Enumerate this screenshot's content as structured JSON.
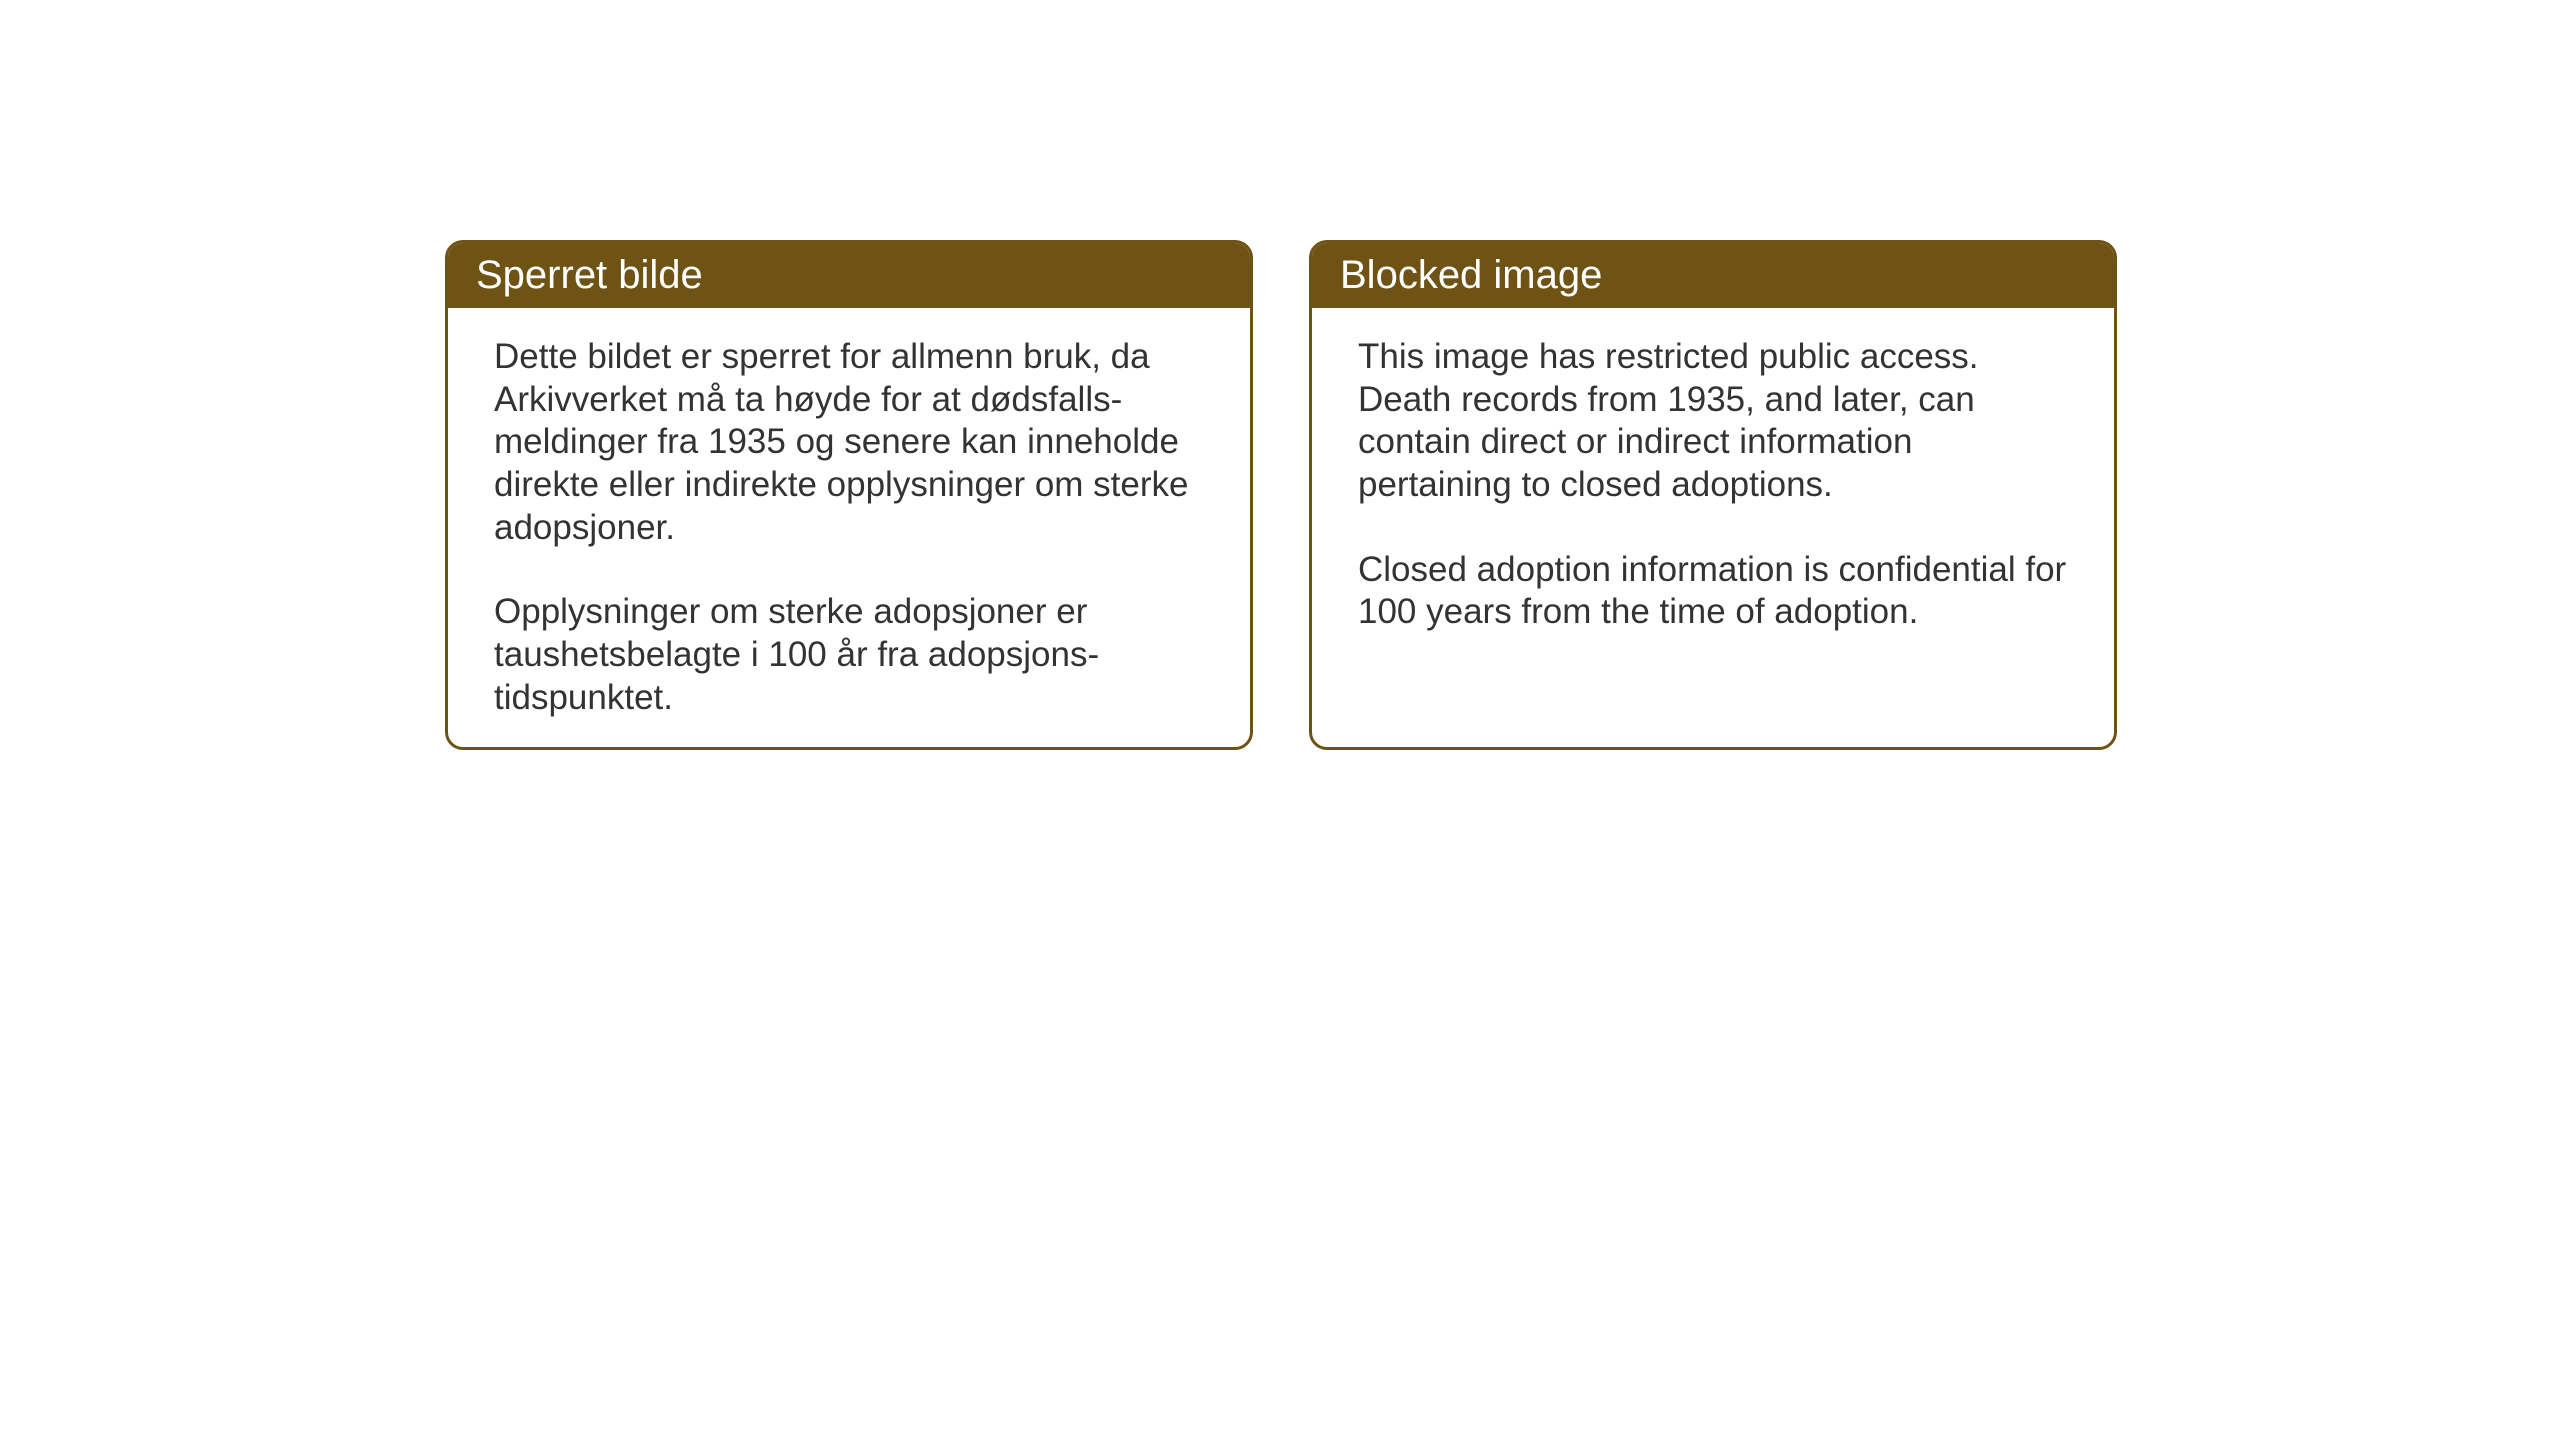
{
  "theme": {
    "header_bg": "#6e5314",
    "header_text": "#ffffff",
    "border_color": "#6e5314",
    "body_bg": "#ffffff",
    "body_text": "#333333",
    "border_radius": 18,
    "border_width": 3,
    "header_fontsize": 40,
    "body_fontsize": 35
  },
  "cards": {
    "norwegian": {
      "title": "Sperret bilde",
      "paragraph1": "Dette bildet er sperret for allmenn bruk, da Arkivverket må ta høyde for at dødsfalls-meldinger fra 1935 og senere kan inneholde direkte eller indirekte opplysninger om sterke adopsjoner.",
      "paragraph2": "Opplysninger om sterke adopsjoner er taushetsbelagte i 100 år fra adopsjons-tidspunktet."
    },
    "english": {
      "title": "Blocked image",
      "paragraph1": "This image has restricted public access. Death records from 1935, and later, can contain direct or indirect information pertaining to closed adoptions.",
      "paragraph2": "Closed adoption information is confidential for 100 years from the time of adoption."
    }
  }
}
